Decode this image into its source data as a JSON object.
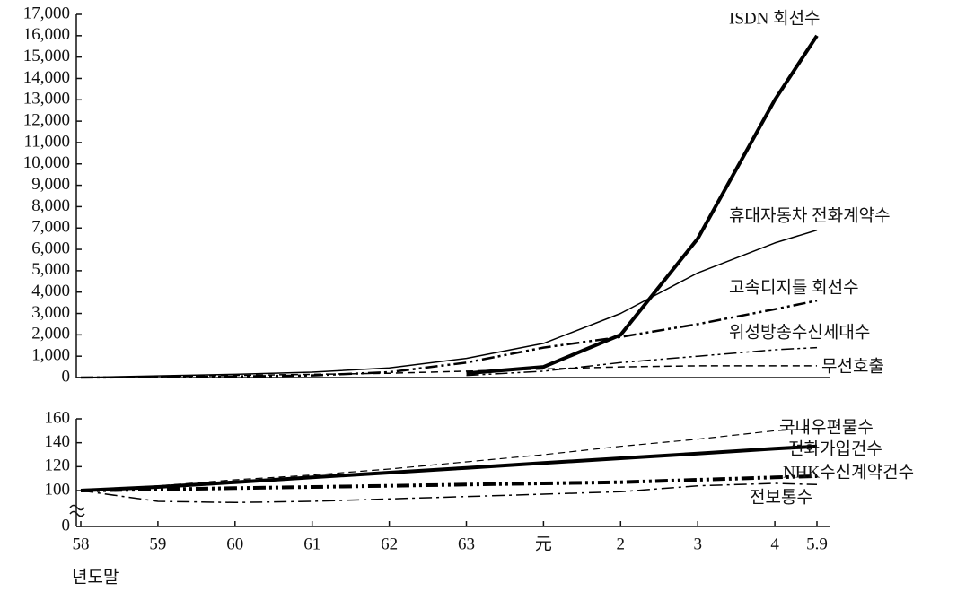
{
  "chart_data": [
    {
      "type": "line",
      "ylim": [
        0,
        17000
      ],
      "yticks": [
        0,
        {
          "value": 1000,
          "label": "1,000"
        },
        {
          "value": 2000,
          "label": "2,000"
        },
        {
          "value": 3000,
          "label": "3,000"
        },
        {
          "value": 4000,
          "label": "4,000"
        },
        {
          "value": 5000,
          "label": "5,000"
        },
        {
          "value": 6000,
          "label": "6,000"
        },
        {
          "value": 7000,
          "label": "7,000"
        },
        {
          "value": 8000,
          "label": "8,000"
        },
        {
          "value": 9000,
          "label": "9,000"
        },
        {
          "value": 10000,
          "label": "10,000"
        },
        {
          "value": 11000,
          "label": "11,000"
        },
        {
          "value": 12000,
          "label": "12,000"
        },
        {
          "value": 13000,
          "label": "13,000"
        },
        {
          "value": 14000,
          "label": "14,000"
        },
        {
          "value": 15000,
          "label": "15,000"
        },
        {
          "value": 16000,
          "label": "16,000"
        },
        {
          "value": 17000,
          "label": "17,000"
        }
      ],
      "series": [
        {
          "name": "ISDN 회선수",
          "color": "#000000",
          "style": "solid",
          "width": 4,
          "values": [
            null,
            null,
            null,
            null,
            null,
            200,
            500,
            2000,
            6500,
            13000,
            16000
          ]
        },
        {
          "name": "휴대자동차 전화계약수",
          "color": "#000000",
          "style": "solid",
          "width": 1.5,
          "values": [
            0,
            80,
            150,
            250,
            450,
            900,
            1600,
            3000,
            4900,
            6300,
            6900
          ]
        },
        {
          "name": "고속디지틀 회선수",
          "color": "#000000",
          "style": "dashdotdot",
          "width": 2.5,
          "values": [
            0,
            20,
            50,
            100,
            250,
            700,
            1400,
            1900,
            2500,
            3200,
            3600
          ]
        },
        {
          "name": "위성방송수신세대수",
          "color": "#000000",
          "style": "dashdotdot",
          "width": 1.5,
          "values": [
            null,
            null,
            null,
            null,
            null,
            100,
            300,
            700,
            1000,
            1300,
            1400
          ]
        },
        {
          "name": "무선호출",
          "color": "#000000",
          "style": "dashed",
          "width": 1.5,
          "values": [
            0,
            50,
            100,
            150,
            200,
            300,
            400,
            500,
            550,
            550,
            550
          ]
        }
      ]
    },
    {
      "type": "line",
      "axis_break": true,
      "x_label": "년도말",
      "categories": [
        "58",
        "59",
        "60",
        "61",
        "62",
        "63",
        "元",
        "2",
        "3",
        "4",
        "5.9"
      ],
      "ylim": [
        70,
        160
      ],
      "yticks": [
        0,
        100,
        120,
        140,
        160
      ],
      "series": [
        {
          "name": "국내우편물수",
          "color": "#000000",
          "style": "dashed",
          "width": 1.2,
          "values": [
            100,
            104,
            109,
            113,
            118,
            124,
            130,
            137,
            143,
            150,
            152
          ]
        },
        {
          "name": "전화가입건수",
          "color": "#000000",
          "style": "solid",
          "width": 4,
          "values": [
            100,
            103,
            107,
            111,
            115,
            119,
            123,
            127,
            131,
            135,
            137
          ]
        },
        {
          "name": "NHK수신계약건수",
          "color": "#000000",
          "style": "dashdotdot",
          "width": 4,
          "values": [
            100,
            101,
            102,
            103,
            104,
            105,
            106,
            107,
            109,
            111,
            112
          ]
        },
        {
          "name": "전보통수",
          "color": "#000000",
          "style": "dashdot",
          "width": 1.5,
          "values": [
            100,
            91,
            90,
            91,
            93,
            95,
            97,
            99,
            104,
            106,
            105
          ]
        }
      ]
    }
  ]
}
